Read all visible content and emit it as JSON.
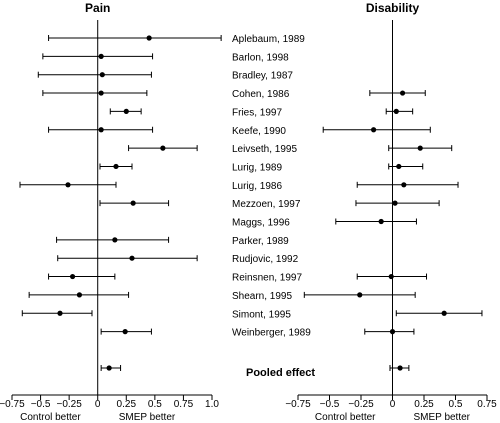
{
  "chart_data": {
    "type": "forest",
    "panels": [
      {
        "title": "Pain",
        "xlim": [
          -0.75,
          1.0
        ],
        "ticks": [
          -0.75,
          -0.5,
          -0.25,
          0,
          0.25,
          0.5,
          0.75,
          1.0
        ],
        "tick_labels": [
          "−0.75",
          "−0.5",
          "−0.25",
          "0",
          "0.25",
          "0.5",
          "0.75",
          "1.0"
        ],
        "footer_left": "Control better",
        "footer_right": "SMEP better",
        "rows": [
          {
            "est": 0.45,
            "lo": -0.43,
            "hi": 1.08
          },
          {
            "est": 0.03,
            "lo": -0.48,
            "hi": 0.48
          },
          {
            "est": 0.04,
            "lo": -0.52,
            "hi": 0.47
          },
          {
            "est": 0.03,
            "lo": -0.48,
            "hi": 0.43
          },
          {
            "est": 0.25,
            "lo": 0.11,
            "hi": 0.38
          },
          {
            "est": 0.03,
            "lo": -0.43,
            "hi": 0.48
          },
          {
            "est": 0.57,
            "lo": 0.27,
            "hi": 0.87
          },
          {
            "est": 0.16,
            "lo": 0.02,
            "hi": 0.3
          },
          {
            "est": -0.26,
            "lo": -0.68,
            "hi": 0.16
          },
          {
            "est": 0.31,
            "lo": 0.02,
            "hi": 0.62
          },
          null,
          {
            "est": 0.15,
            "lo": -0.36,
            "hi": 0.62
          },
          {
            "est": 0.3,
            "lo": -0.35,
            "hi": 0.87
          },
          {
            "est": -0.22,
            "lo": -0.43,
            "hi": 0.15
          },
          {
            "est": -0.16,
            "lo": -0.6,
            "hi": 0.27
          },
          {
            "est": -0.33,
            "lo": -0.66,
            "hi": -0.05
          },
          {
            "est": 0.24,
            "lo": 0.03,
            "hi": 0.47
          }
        ],
        "pooled": {
          "est": 0.1,
          "lo": 0.03,
          "hi": 0.2
        }
      },
      {
        "title": "Disability",
        "xlim": [
          -0.75,
          0.75
        ],
        "ticks": [
          -0.75,
          -0.5,
          -0.25,
          0,
          0.25,
          0.5,
          0.75
        ],
        "tick_labels": [
          "−0.75",
          "−0.5",
          "−0.25",
          "0",
          "0.25",
          "0.5",
          "0.75"
        ],
        "footer_left": "Control better",
        "footer_right": "SMEP better",
        "rows": [
          null,
          null,
          null,
          {
            "est": 0.08,
            "lo": -0.18,
            "hi": 0.26
          },
          {
            "est": 0.03,
            "lo": -0.05,
            "hi": 0.16
          },
          {
            "est": -0.15,
            "lo": -0.55,
            "hi": 0.3
          },
          {
            "est": 0.22,
            "lo": -0.03,
            "hi": 0.47
          },
          {
            "est": 0.05,
            "lo": -0.03,
            "hi": 0.24
          },
          {
            "est": 0.09,
            "lo": -0.28,
            "hi": 0.52
          },
          {
            "est": 0.02,
            "lo": -0.29,
            "hi": 0.37
          },
          {
            "est": -0.09,
            "lo": -0.45,
            "hi": 0.19
          },
          null,
          null,
          {
            "est": -0.01,
            "lo": -0.28,
            "hi": 0.27
          },
          {
            "est": -0.26,
            "lo": -0.7,
            "hi": 0.18
          },
          {
            "est": 0.41,
            "lo": 0.03,
            "hi": 0.71
          },
          {
            "est": 0.0,
            "lo": -0.22,
            "hi": 0.17
          }
        ],
        "pooled": {
          "est": 0.06,
          "lo": -0.02,
          "hi": 0.13
        }
      }
    ],
    "studies": [
      "Aplebaum, 1989",
      "Barlon, 1998",
      "Bradley, 1987",
      "Cohen, 1986",
      "Fries, 1997",
      "Keefe, 1990",
      "Leivseth, 1995",
      "Lurig, 1989",
      "Lurig, 1986",
      "Mezzoen, 1997",
      "Maggs, 1996",
      "Parker, 1989",
      "Rudjovic, 1992",
      "Reinsnen, 1997",
      "Shearn, 1995",
      "Simont, 1995",
      "Weinberger, 1989"
    ],
    "pooled_label": "Pooled effect"
  }
}
